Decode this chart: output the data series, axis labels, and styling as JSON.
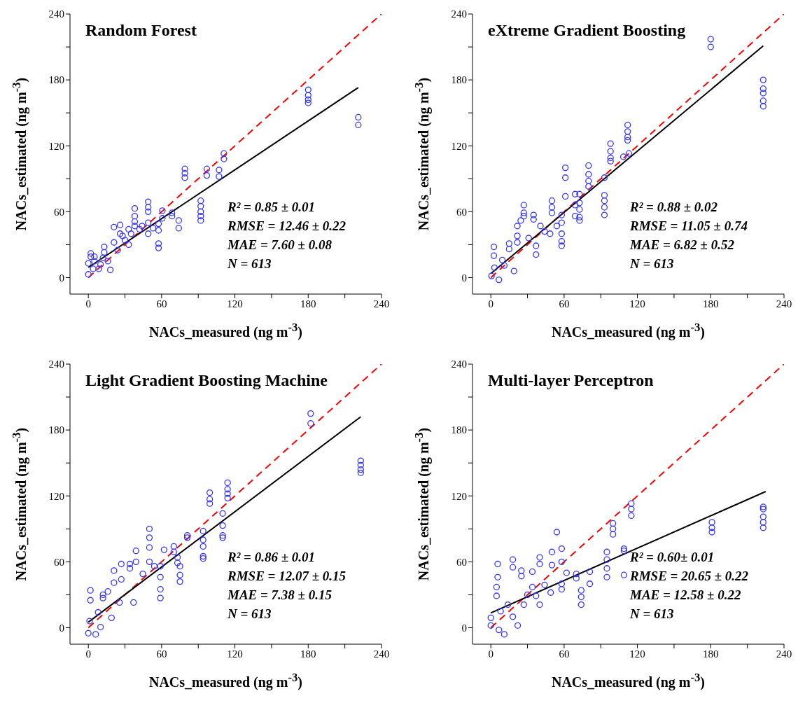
{
  "chart_data": [
    {
      "type": "scatter",
      "title": "Random Forest",
      "xlabel": "NACs_measured (ng m$^{-3}$)",
      "ylabel": "NACs_estimated (ng m$^{-3}$)",
      "xlim": [
        -15,
        240
      ],
      "ylim": [
        -15,
        240
      ],
      "xticks": [
        0,
        {
          "value": 30,
          "label": null
        },
        60,
        {
          "value": 90,
          "label": null
        },
        120,
        {
          "value": 150,
          "label": null
        },
        180,
        {
          "value": 210,
          "label": null
        },
        240
      ],
      "yticks": [
        0,
        {
          "value": 30,
          "label": null
        },
        60,
        {
          "value": 90,
          "label": null
        },
        120,
        {
          "value": 150,
          "label": null
        },
        180,
        {
          "value": 210,
          "label": null
        },
        240
      ],
      "marker": "circle",
      "annotations": [
        "R² = 0.85 ± 0.01",
        "RMSE = 12.46 ± 0.22",
        "MAE = 7.60 ± 0.08",
        "N = 613"
      ],
      "series": [
        {
          "color": "#3333ff",
          "x": [
            180,
            180,
            180,
            180,
            221,
            221,
            111,
            111,
            79,
            79,
            79,
            97,
            97,
            107,
            107,
            92,
            92,
            92,
            92,
            92,
            74,
            74,
            68.5,
            68.5,
            60.6,
            60.6,
            57.5,
            57.5,
            57.5,
            57.5,
            49,
            49,
            49,
            49,
            49,
            38,
            38,
            38,
            38,
            33,
            33,
            26,
            26,
            21,
            21,
            13,
            13,
            18,
            8.6,
            2,
            2,
            0,
            0,
            5,
            5,
            30,
            44,
            53,
            24,
            16,
            10,
            4,
            12,
            28,
            35,
            42
          ],
          "values": [
            171,
            166,
            162,
            159,
            146,
            139,
            113,
            108,
            99,
            95,
            91,
            99,
            93,
            98,
            92,
            70,
            65,
            60,
            56,
            52,
            52,
            45,
            59,
            56,
            61,
            54,
            31,
            27,
            49,
            43,
            69,
            64,
            60,
            50,
            40,
            63,
            56,
            51,
            47,
            44,
            30,
            48,
            40,
            46,
            32,
            28,
            23,
            7,
            8,
            22,
            19,
            13,
            3,
            19,
            15,
            34,
            47,
            45,
            25,
            15,
            12,
            8,
            18,
            38,
            40,
            44
          ]
        },
        {
          "type": "line",
          "color": "#ff0000",
          "line_style": "dashed",
          "marker": "none",
          "x": [
            0,
            240
          ],
          "values": [
            0,
            240
          ]
        },
        {
          "type": "line",
          "color": "#000000",
          "line_style": "solid",
          "marker": "none",
          "x": [
            0,
            221
          ],
          "values": [
            9.2,
            173
          ]
        }
      ]
    },
    {
      "type": "scatter",
      "title": "eXtreme Gradient Boosting",
      "xlabel": "NACs_measured (ng m$^{-3}$)",
      "ylabel": "NACs_estimated (ng m$^{-3}$)",
      "xlim": [
        -15,
        240
      ],
      "ylim": [
        -15,
        240
      ],
      "xticks": [
        0,
        {
          "value": 30,
          "label": null
        },
        60,
        {
          "value": 90,
          "label": null
        },
        120,
        {
          "value": 150,
          "label": null
        },
        180,
        {
          "value": 210,
          "label": null
        },
        240
      ],
      "yticks": [
        0,
        {
          "value": 30,
          "label": null
        },
        60,
        {
          "value": 90,
          "label": null
        },
        120,
        {
          "value": 150,
          "label": null
        },
        180,
        {
          "value": 210,
          "label": null
        },
        240
      ],
      "marker": "circle",
      "annotations": [
        "R² = 0.88 ± 0.02",
        "RMSE = 11.05 ± 0.74",
        "MAE = 6.82 ± 0.52",
        "N = 613"
      ],
      "series": [
        {
          "color": "#3333ff",
          "x": [
            180,
            180,
            223,
            223,
            223,
            223,
            223,
            112,
            112,
            112,
            112,
            108.5,
            113,
            98,
            98,
            98,
            98,
            93,
            93,
            93,
            93,
            93,
            80,
            80,
            80,
            80,
            72.6,
            72.6,
            72.6,
            72.6,
            72.6,
            69,
            69,
            69,
            61,
            61,
            61,
            58,
            58,
            58,
            58,
            58,
            50,
            50,
            50,
            48.5,
            40.6,
            35,
            35,
            37,
            37,
            27,
            27,
            27,
            21.7,
            24.5,
            21.7,
            21.7,
            15,
            15,
            2.5,
            2.5,
            9.4,
            19,
            6.6,
            0.6,
            3,
            31,
            44,
            54,
            11
          ],
          "values": [
            217,
            210,
            180,
            172,
            168,
            161,
            156,
            139,
            133,
            128,
            125,
            110,
            113,
            122,
            115,
            109,
            106,
            91,
            75,
            70,
            64,
            57,
            102,
            94,
            88,
            83,
            76,
            68,
            62,
            55,
            52,
            76,
            66,
            56,
            100,
            91,
            74,
            57,
            50,
            40,
            33,
            29,
            70,
            64,
            59,
            40,
            47,
            57,
            53,
            29,
            21,
            66,
            59,
            56,
            47,
            52,
            38,
            32,
            31,
            26,
            28,
            20,
            16,
            6,
            -2,
            1.5,
            9,
            36,
            42,
            47,
            11
          ]
        },
        {
          "type": "line",
          "color": "#ff0000",
          "line_style": "dashed",
          "marker": "none",
          "x": [
            0,
            240
          ],
          "values": [
            0,
            240
          ]
        },
        {
          "type": "line",
          "color": "#000000",
          "line_style": "solid",
          "marker": "none",
          "x": [
            0,
            223
          ],
          "values": [
            3.6,
            211
          ]
        }
      ]
    },
    {
      "type": "scatter",
      "title": "Light Gradient Boosting Machine",
      "xlabel": "NACs_measured (ng m$^{-3}$)",
      "ylabel": "NACs_estimated (ng m$^{-3}$)",
      "xlim": [
        -15,
        240
      ],
      "ylim": [
        -15,
        240
      ],
      "xticks": [
        0,
        {
          "value": 30,
          "label": null
        },
        60,
        {
          "value": 90,
          "label": null
        },
        120,
        {
          "value": 150,
          "label": null
        },
        180,
        {
          "value": 210,
          "label": null
        },
        240
      ],
      "yticks": [
        0,
        {
          "value": 30,
          "label": null
        },
        60,
        {
          "value": 90,
          "label": null
        },
        120,
        {
          "value": 150,
          "label": null
        },
        180,
        {
          "value": 210,
          "label": null
        },
        240
      ],
      "marker": "circle",
      "annotations": [
        "R² = 0.86 ± 0.01",
        "RMSE = 12.07 ± 0.15",
        "MAE = 7.38 ± 0.15",
        "N = 613"
      ],
      "series": [
        {
          "color": "#3333ff",
          "x": [
            182,
            182,
            223,
            223,
            223,
            223,
            114,
            114,
            114,
            114,
            99.4,
            99.4,
            99.4,
            110,
            110,
            110,
            110,
            94,
            94,
            94,
            94,
            94,
            81,
            81,
            70,
            70,
            75,
            75,
            75,
            73,
            73,
            62,
            59,
            59,
            59,
            59,
            50,
            50,
            50,
            50,
            39,
            39,
            34,
            34,
            27,
            27,
            21,
            21,
            16,
            12,
            12,
            1.7,
            1.7,
            0,
            6,
            10,
            19,
            37,
            44.6,
            54,
            25.5,
            8,
            1
          ],
          "values": [
            195,
            186,
            152,
            148,
            144,
            141,
            132,
            126,
            122,
            118,
            123,
            117,
            113,
            104,
            93,
            84,
            82,
            88,
            80,
            74,
            65,
            63,
            84,
            82,
            74,
            69,
            56,
            48,
            42,
            64,
            59,
            71,
            35,
            27,
            56,
            46,
            90,
            82,
            73,
            60,
            70,
            60,
            58,
            54,
            58,
            44,
            52,
            41,
            33,
            30,
            27,
            34,
            25,
            -5,
            -6,
            0.6,
            9,
            23,
            49,
            56,
            23,
            14,
            6
          ]
        },
        {
          "type": "line",
          "color": "#ff0000",
          "line_style": "dashed",
          "marker": "none",
          "x": [
            0,
            240
          ],
          "values": [
            0,
            240
          ]
        },
        {
          "type": "line",
          "color": "#000000",
          "line_style": "solid",
          "marker": "none",
          "x": [
            0,
            223
          ],
          "values": [
            5,
            192
          ]
        }
      ]
    },
    {
      "type": "scatter",
      "title": "Multi-layer Perceptron",
      "xlabel": "NACs_measured (ng m$^{-3}$)",
      "ylabel": "NACs_estimated (ng m$^{-3}$)",
      "xlim": [
        -15,
        240
      ],
      "ylim": [
        -15,
        240
      ],
      "xticks": [
        0,
        {
          "value": 30,
          "label": null
        },
        60,
        {
          "value": 90,
          "label": null
        },
        120,
        {
          "value": 150,
          "label": null
        },
        180,
        {
          "value": 210,
          "label": null
        },
        240
      ],
      "yticks": [
        0,
        {
          "value": 30,
          "label": null
        },
        60,
        {
          "value": 90,
          "label": null
        },
        120,
        {
          "value": 150,
          "label": null
        },
        180,
        {
          "value": 210,
          "label": null
        },
        240
      ],
      "marker": "circle",
      "annotations": [
        "R² = 0.60± 0.01",
        "RMSE = 20.65 ± 0.22",
        "MAE = 12.58 ± 0.22",
        "N = 613"
      ],
      "series": [
        {
          "color": "#3333ff",
          "x": [
            115,
            115,
            115,
            100,
            100,
            100,
            181,
            181,
            181,
            223,
            223,
            223,
            223,
            223,
            109,
            109,
            109,
            95,
            95,
            95,
            95,
            81,
            81,
            74,
            74,
            74,
            70,
            70,
            62,
            58,
            58,
            58,
            58,
            54,
            50,
            50,
            49,
            40,
            40,
            34,
            34,
            25,
            25,
            18,
            18,
            5.6,
            5.6,
            4.7,
            4.7,
            0,
            0,
            11,
            6.6,
            22,
            27,
            14,
            37,
            44,
            40,
            18,
            8,
            30
          ],
          "values": [
            113,
            108,
            102,
            95,
            90,
            85,
            96,
            91,
            87,
            110,
            108,
            101,
            96,
            91,
            72,
            70,
            48,
            69,
            62,
            54,
            46,
            51,
            40,
            34,
            28,
            21,
            49,
            45,
            50,
            72,
            60,
            40,
            35,
            87,
            69,
            57,
            32,
            64,
            58,
            51,
            37,
            52,
            47,
            62,
            55,
            58,
            46,
            37,
            29,
            9,
            2,
            -6,
            -2,
            2,
            21,
            21,
            29,
            39,
            21,
            10,
            15,
            30
          ]
        },
        {
          "type": "line",
          "color": "#ff0000",
          "line_style": "dashed",
          "marker": "none",
          "x": [
            0,
            240
          ],
          "values": [
            0,
            240
          ]
        },
        {
          "type": "line",
          "color": "#000000",
          "line_style": "solid",
          "marker": "none",
          "x": [
            0,
            225
          ],
          "values": [
            13.5,
            124
          ]
        }
      ]
    }
  ]
}
